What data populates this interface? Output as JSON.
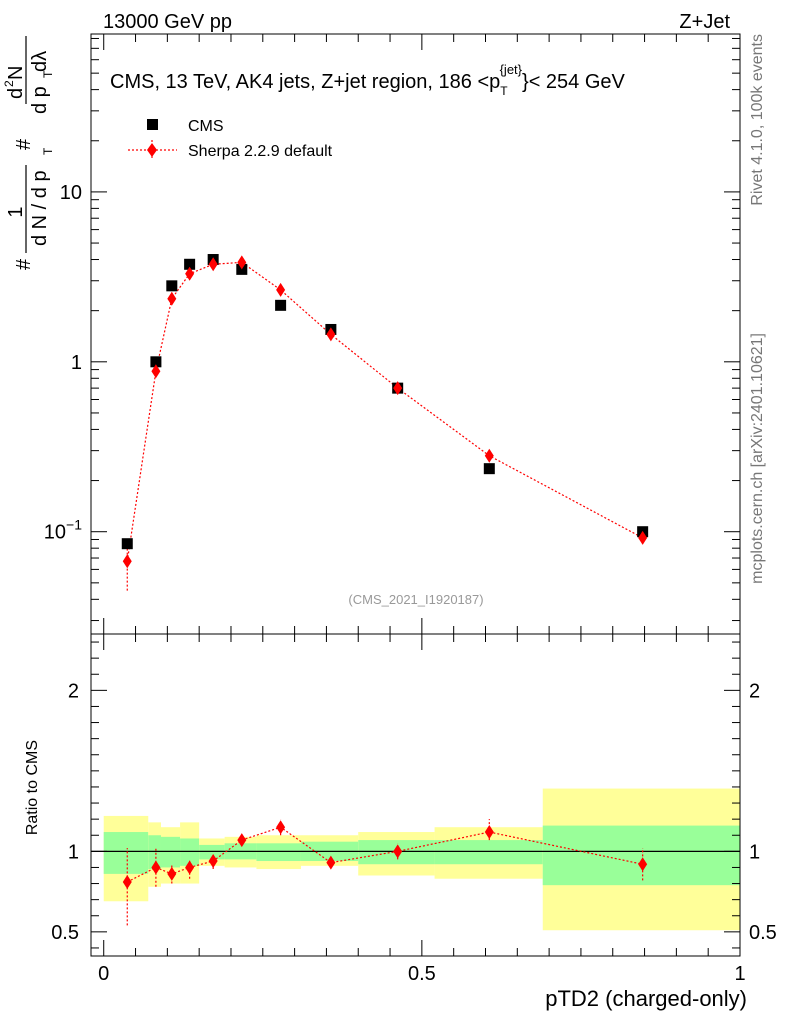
{
  "header": {
    "left": "13000 GeV pp",
    "right": "Z+Jet"
  },
  "side_labels": {
    "rivet": "Rivet 4.1.0,  100k events",
    "mcplots": "mcplots.cern.ch [arXiv:2401.10621]"
  },
  "colors": {
    "data": "#000000",
    "mc": "#ff0000",
    "band_inner": "#99ff99",
    "band_outer": "#ffff99"
  },
  "chart_data": [
    {
      "type": "scatter",
      "title": "CMS, 13 TeV, AK4 jets, Z+jet region, 186 <p",
      "title_sup": "{jet}",
      "title_sub": "T",
      "title_end": "}< 254 GeV",
      "analysis_tag": "(CMS_2021_I1920187)",
      "yscale": "log",
      "ylim": [
        0.025,
        85
      ],
      "xlim": [
        -0.02,
        1.0
      ],
      "ylabel_parts": [
        "#",
        "1",
        "d N / d p",
        "T",
        "#",
        "d p",
        "T",
        "d",
        "2",
        "N",
        "dλ"
      ],
      "yticks": [
        {
          "value": 0.1,
          "base": "10",
          "exp": "−1"
        },
        {
          "value": 1,
          "base": "1",
          "exp": ""
        },
        {
          "value": 10,
          "base": "10",
          "exp": ""
        }
      ],
      "legend": [
        {
          "name": "CMS",
          "marker": "square"
        },
        {
          "name": "Sherpa 2.2.9 default",
          "marker": "diamond"
        }
      ],
      "series": [
        {
          "name": "CMS",
          "x": [
            0.037,
            0.082,
            0.107,
            0.135,
            0.172,
            0.217,
            0.278,
            0.357,
            0.462,
            0.606,
            0.847
          ],
          "y": [
            0.085,
            1.0,
            2.8,
            3.75,
            4.0,
            3.5,
            2.15,
            1.55,
            0.7,
            0.235,
            0.1
          ]
        },
        {
          "name": "Sherpa 2.2.9 default",
          "x": [
            0.037,
            0.082,
            0.107,
            0.135,
            0.172,
            0.217,
            0.278,
            0.357,
            0.462,
            0.606,
            0.847
          ],
          "y": [
            0.067,
            0.88,
            2.35,
            3.3,
            3.75,
            3.85,
            2.65,
            1.45,
            0.7,
            0.28,
            0.092
          ],
          "yerr_low": [
            0.045,
            0.82,
            2.22,
            3.15,
            3.6,
            3.7,
            2.5,
            1.38,
            0.66,
            0.26,
            0.085
          ],
          "yerr_high": [
            0.08,
            0.95,
            2.5,
            3.5,
            3.95,
            4.05,
            2.8,
            1.52,
            0.74,
            0.3,
            0.1
          ]
        }
      ]
    },
    {
      "type": "scatter",
      "ylabel": "Ratio to CMS",
      "xlabel": "pTD2 (charged-only)",
      "ylim": [
        0.35,
        2.35
      ],
      "xlim": [
        -0.02,
        1.0
      ],
      "yticks": [
        0.5,
        1,
        2
      ],
      "ytick_labels": [
        "0.5",
        "1",
        "2"
      ],
      "xticks": [
        0,
        0.5,
        1
      ],
      "xtick_labels": [
        "0",
        "0.5",
        "1"
      ],
      "bands": [
        {
          "x0": 0.0,
          "x1": 0.07,
          "inner": [
            0.86,
            1.12
          ],
          "outer": [
            0.69,
            1.22
          ]
        },
        {
          "x0": 0.07,
          "x1": 0.09,
          "inner": [
            0.89,
            1.1
          ],
          "outer": [
            0.78,
            1.18
          ]
        },
        {
          "x0": 0.09,
          "x1": 0.12,
          "inner": [
            0.9,
            1.09
          ],
          "outer": [
            0.8,
            1.15
          ]
        },
        {
          "x0": 0.12,
          "x1": 0.15,
          "inner": [
            0.91,
            1.08
          ],
          "outer": [
            0.8,
            1.18
          ]
        },
        {
          "x0": 0.15,
          "x1": 0.19,
          "inner": [
            0.95,
            1.04
          ],
          "outer": [
            0.91,
            1.08
          ]
        },
        {
          "x0": 0.19,
          "x1": 0.24,
          "inner": [
            0.95,
            1.05
          ],
          "outer": [
            0.9,
            1.09
          ]
        },
        {
          "x0": 0.24,
          "x1": 0.31,
          "inner": [
            0.94,
            1.05
          ],
          "outer": [
            0.89,
            1.1
          ]
        },
        {
          "x0": 0.31,
          "x1": 0.4,
          "inner": [
            0.94,
            1.06
          ],
          "outer": [
            0.91,
            1.1
          ]
        },
        {
          "x0": 0.4,
          "x1": 0.52,
          "inner": [
            0.92,
            1.07
          ],
          "outer": [
            0.85,
            1.12
          ]
        },
        {
          "x0": 0.52,
          "x1": 0.69,
          "inner": [
            0.92,
            1.07
          ],
          "outer": [
            0.83,
            1.15
          ]
        },
        {
          "x0": 0.69,
          "x1": 1.0,
          "inner": [
            0.79,
            1.16
          ],
          "outer": [
            0.51,
            1.39
          ]
        }
      ],
      "series": [
        {
          "name": "Sherpa 2.2.9 default / CMS",
          "x": [
            0.037,
            0.082,
            0.107,
            0.135,
            0.172,
            0.217,
            0.278,
            0.357,
            0.462,
            0.606,
            0.847
          ],
          "y": [
            0.81,
            0.9,
            0.86,
            0.9,
            0.94,
            1.07,
            1.15,
            0.93,
            1.0,
            1.12,
            0.92
          ],
          "yerr_low": [
            0.54,
            0.78,
            0.8,
            0.83,
            0.89,
            1.04,
            1.1,
            0.9,
            0.95,
            1.07,
            0.82
          ],
          "yerr_high": [
            1.02,
            1.02,
            0.92,
            0.95,
            0.98,
            1.11,
            1.2,
            0.96,
            1.05,
            1.2,
            1.02
          ]
        }
      ]
    }
  ]
}
